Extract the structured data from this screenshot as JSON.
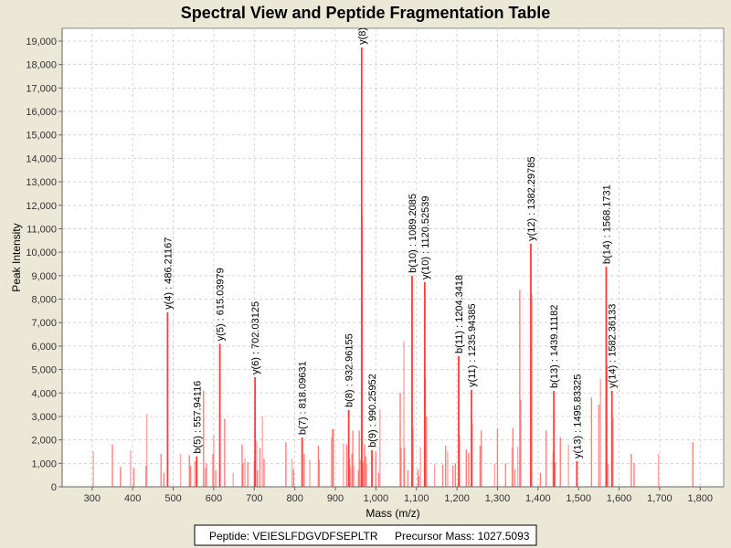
{
  "chart_data": {
    "type": "bar",
    "title": "Spectral View and Peptide Fragmentation Table",
    "xlabel": "Mass (m/z)",
    "ylabel": "Peak Intensity",
    "xlim": [
      226,
      1858
    ],
    "ylim": [
      0,
      19545
    ],
    "x_ticks": [
      300,
      400,
      500,
      600,
      700,
      800,
      900,
      1000,
      1100,
      1200,
      1300,
      1400,
      1500,
      1600,
      1700,
      1800
    ],
    "y_ticks": [
      0,
      1000,
      2000,
      3000,
      4000,
      5000,
      6000,
      7000,
      8000,
      9000,
      10000,
      11000,
      12000,
      13000,
      14000,
      15000,
      16000,
      17000,
      18000,
      19000
    ],
    "grid": true,
    "annotated_peaks": [
      {
        "mz": 486.21,
        "intensity": 7440,
        "label": "y(4) : 486.21167"
      },
      {
        "mz": 557.94,
        "intensity": 1300,
        "label": "b(5) : 557.94116"
      },
      {
        "mz": 615.04,
        "intensity": 6100,
        "label": "y(5) : 615.03979"
      },
      {
        "mz": 702.03,
        "intensity": 4670,
        "label": "y(6) : 702.03125"
      },
      {
        "mz": 818.1,
        "intensity": 2100,
        "label": "b(7) : 818.09631"
      },
      {
        "mz": 932.96,
        "intensity": 3270,
        "label": "b(8) : 932.96155"
      },
      {
        "mz": 965.0,
        "intensity": 18730,
        "label": "y(8) :"
      },
      {
        "mz": 990.26,
        "intensity": 1560,
        "label": "b(9) : 990.25952"
      },
      {
        "mz": 1089.21,
        "intensity": 9000,
        "label": "b(10) : 1089.2085"
      },
      {
        "mz": 1120.53,
        "intensity": 8720,
        "label": "y(10) : 1120.52539"
      },
      {
        "mz": 1204.34,
        "intensity": 5570,
        "label": "b(11) : 1204.3418"
      },
      {
        "mz": 1235.94,
        "intensity": 4130,
        "label": "y(11) : 1235.94385"
      },
      {
        "mz": 1382.3,
        "intensity": 10360,
        "label": "y(12) : 1382.29785"
      },
      {
        "mz": 1439.11,
        "intensity": 4090,
        "label": "b(13) : 1439.11182"
      },
      {
        "mz": 1495.83,
        "intensity": 1090,
        "label": "y(13) : 1495.83325"
      },
      {
        "mz": 1568.17,
        "intensity": 9380,
        "label": "b(14) : 1568.1731"
      },
      {
        "mz": 1582.36,
        "intensity": 4090,
        "label": "y(14) : 1582.36133"
      }
    ],
    "peaks": [
      [
        303,
        1500
      ],
      [
        350,
        1800
      ],
      [
        370,
        850
      ],
      [
        395,
        1550
      ],
      [
        403,
        800
      ],
      [
        433,
        900
      ],
      [
        435,
        3100
      ],
      [
        470,
        1400
      ],
      [
        477,
        600
      ],
      [
        518,
        1400
      ],
      [
        540,
        1350
      ],
      [
        543,
        900
      ],
      [
        553,
        1100
      ],
      [
        557,
        1100
      ],
      [
        575,
        4100
      ],
      [
        579,
        800
      ],
      [
        582,
        1000
      ],
      [
        598,
        1400
      ],
      [
        600,
        2200
      ],
      [
        605,
        700
      ],
      [
        627,
        2900
      ],
      [
        648,
        600
      ],
      [
        670,
        1800
      ],
      [
        672,
        1000
      ],
      [
        677,
        1200
      ],
      [
        684,
        1050
      ],
      [
        700,
        1100
      ],
      [
        706,
        1950
      ],
      [
        708,
        700
      ],
      [
        714,
        1650
      ],
      [
        720,
        3000
      ],
      [
        724,
        1200
      ],
      [
        778,
        1900
      ],
      [
        793,
        1200
      ],
      [
        797,
        750
      ],
      [
        823,
        1400
      ],
      [
        837,
        1150
      ],
      [
        858,
        1750
      ],
      [
        860,
        1150
      ],
      [
        890,
        2100
      ],
      [
        893,
        2450
      ],
      [
        895,
        2450
      ],
      [
        920,
        1850
      ],
      [
        928,
        1800
      ],
      [
        935,
        1200
      ],
      [
        937,
        850
      ],
      [
        941,
        1400
      ],
      [
        943,
        2400
      ],
      [
        946,
        900
      ],
      [
        957,
        700
      ],
      [
        959,
        2400
      ],
      [
        962,
        1150
      ],
      [
        966,
        11500
      ],
      [
        968,
        1000
      ],
      [
        970,
        1100
      ],
      [
        972,
        1800
      ],
      [
        975,
        1300
      ],
      [
        977,
        1000
      ],
      [
        1000,
        1500
      ],
      [
        1007,
        600
      ],
      [
        1010,
        3300
      ],
      [
        1060,
        4000
      ],
      [
        1062,
        1650
      ],
      [
        1069,
        6200
      ],
      [
        1070,
        1650
      ],
      [
        1079,
        700
      ],
      [
        1092,
        2500
      ],
      [
        1104,
        750
      ],
      [
        1106,
        450
      ],
      [
        1110,
        1700
      ],
      [
        1122,
        4600
      ],
      [
        1125,
        3000
      ],
      [
        1145,
        950
      ],
      [
        1165,
        950
      ],
      [
        1172,
        1750
      ],
      [
        1177,
        1500
      ],
      [
        1190,
        900
      ],
      [
        1196,
        1000
      ],
      [
        1207,
        2150
      ],
      [
        1223,
        1600
      ],
      [
        1229,
        1450
      ],
      [
        1238,
        2700
      ],
      [
        1257,
        1750
      ],
      [
        1260,
        2400
      ],
      [
        1293,
        1000
      ],
      [
        1300,
        2500
      ],
      [
        1320,
        1000
      ],
      [
        1336,
        1650
      ],
      [
        1338,
        2500
      ],
      [
        1343,
        750
      ],
      [
        1350,
        1700
      ],
      [
        1355,
        8400
      ],
      [
        1357,
        3700
      ],
      [
        1385,
        8200
      ],
      [
        1406,
        600
      ],
      [
        1420,
        2400
      ],
      [
        1437,
        1500
      ],
      [
        1442,
        1050
      ],
      [
        1455,
        2100
      ],
      [
        1475,
        1800
      ],
      [
        1532,
        3800
      ],
      [
        1550,
        3500
      ],
      [
        1554,
        4600
      ],
      [
        1570,
        5200
      ],
      [
        1572,
        1000
      ],
      [
        1585,
        2900
      ],
      [
        1630,
        1400
      ],
      [
        1637,
        1000
      ],
      [
        1697,
        1400
      ],
      [
        1782,
        1900
      ]
    ],
    "legend": {
      "peptide_label": "Peptide: VEIESLFDGVDFSEPLTR",
      "precursor_label": "Precursor Mass: 1027.5093",
      "placement": "bottom-center"
    },
    "colors": {
      "annotated": "#ff3b3b",
      "peak": "#ff6a6a",
      "background": "#ebe8d8",
      "grid": "#d4d4d4"
    }
  }
}
